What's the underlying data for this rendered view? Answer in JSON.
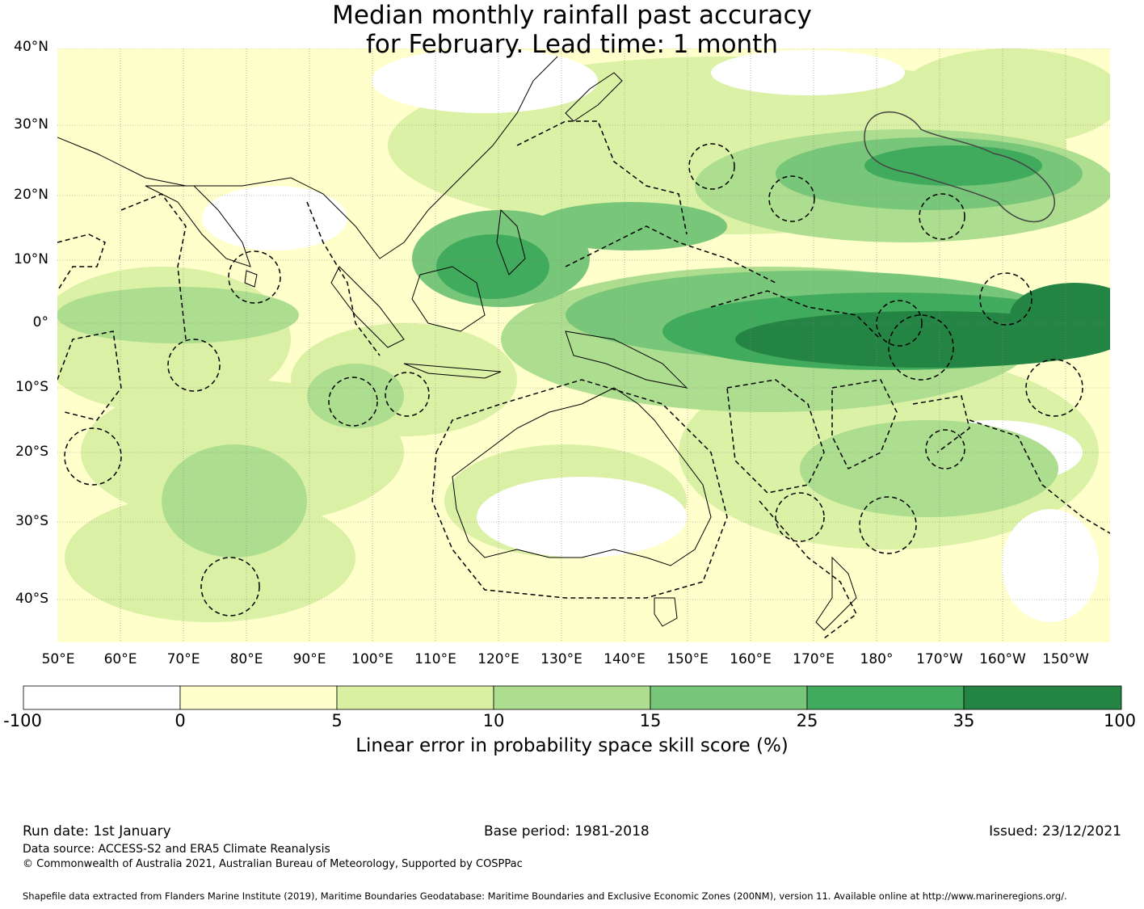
{
  "title": {
    "line1": "Median monthly rainfall past accuracy",
    "line2": "for February. Lead time: 1 month"
  },
  "map": {
    "lat_labels": [
      "40°N",
      "30°N",
      "20°N",
      "10°N",
      "0°",
      "10°S",
      "20°S",
      "30°S",
      "40°S"
    ],
    "lon_labels": [
      "50°E",
      "60°E",
      "70°E",
      "80°E",
      "90°E",
      "100°E",
      "110°E",
      "120°E",
      "130°E",
      "140°E",
      "150°E",
      "160°E",
      "170°E",
      "180°",
      "170°W",
      "160°W",
      "150°W"
    ],
    "gridlines": true,
    "boundary_style": "dashed"
  },
  "colorbar": {
    "label": "Linear error in probability space skill score (%)",
    "ticks": [
      "-100",
      "0",
      "5",
      "10",
      "15",
      "25",
      "35",
      "100"
    ],
    "colors": [
      "#ffffff",
      "#ffffcc",
      "#d9f0a3",
      "#addd8e",
      "#78c679",
      "#41ab5d",
      "#238443"
    ]
  },
  "footer": {
    "run_date": "Run date: 1st January",
    "base_period": "Base period: 1981-2018",
    "issued": "Issued: 23/12/2021",
    "data_source": "Data source: ACCESS-S2 and ERA5 Climate Reanalysis",
    "copyright": "© Commonwealth of Australia 2021, Australian Bureau of Meteorology, Supported by COSPPac",
    "shapefile": "Shapefile data extracted from Flanders Marine Institute (2019), Maritime Boundaries Geodatabase: Maritime Boundaries and Exclusive Economic Zones (200NM), version 11. Available online at http://www.marineregions.org/."
  }
}
